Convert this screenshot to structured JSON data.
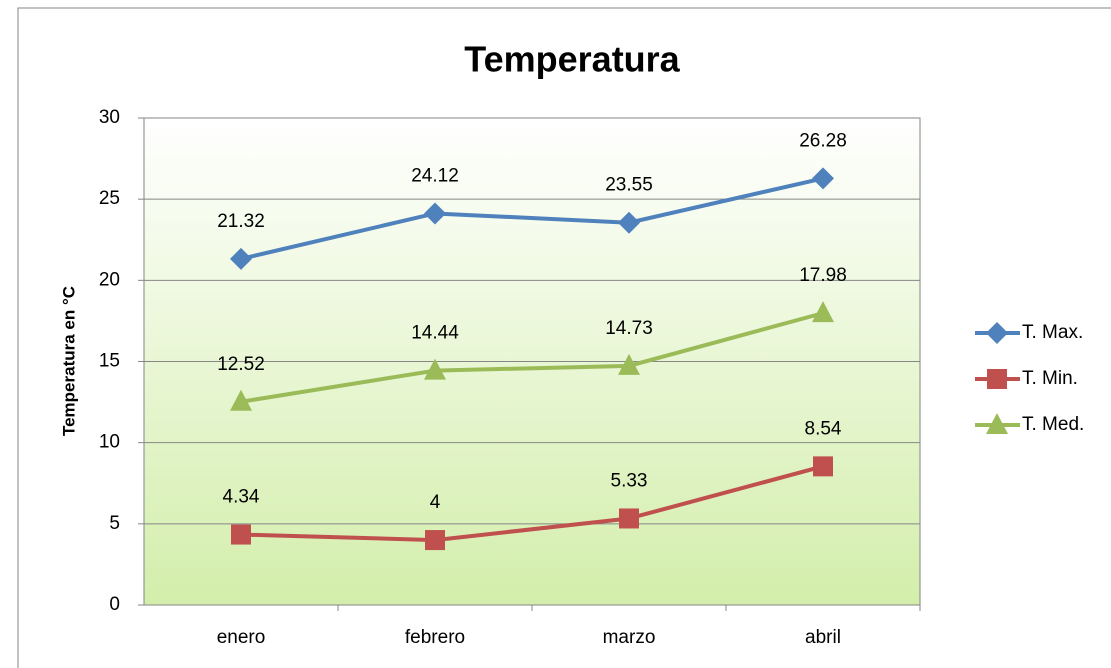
{
  "chart_data": {
    "type": "line",
    "title": "Temperatura",
    "y_label": "Temperatura en °C",
    "categories": [
      "enero",
      "febrero",
      "marzo",
      "abril"
    ],
    "series": [
      {
        "name": "T. Max.",
        "color": "#4f81bd",
        "marker": "diamond",
        "values": [
          21.32,
          24.12,
          23.55,
          26.28
        ]
      },
      {
        "name": "T. Min.",
        "color": "#c0504d",
        "marker": "square",
        "values": [
          4.34,
          4,
          5.33,
          8.54
        ]
      },
      {
        "name": "T. Med.",
        "color": "#9bbb59",
        "marker": "triangle",
        "values": [
          12.52,
          14.44,
          14.73,
          17.98
        ]
      }
    ],
    "ylim": [
      0,
      30
    ],
    "yticks": [
      0,
      5,
      10,
      15,
      20,
      25,
      30
    ],
    "grid": true,
    "legend": "right",
    "data_labels": true
  }
}
